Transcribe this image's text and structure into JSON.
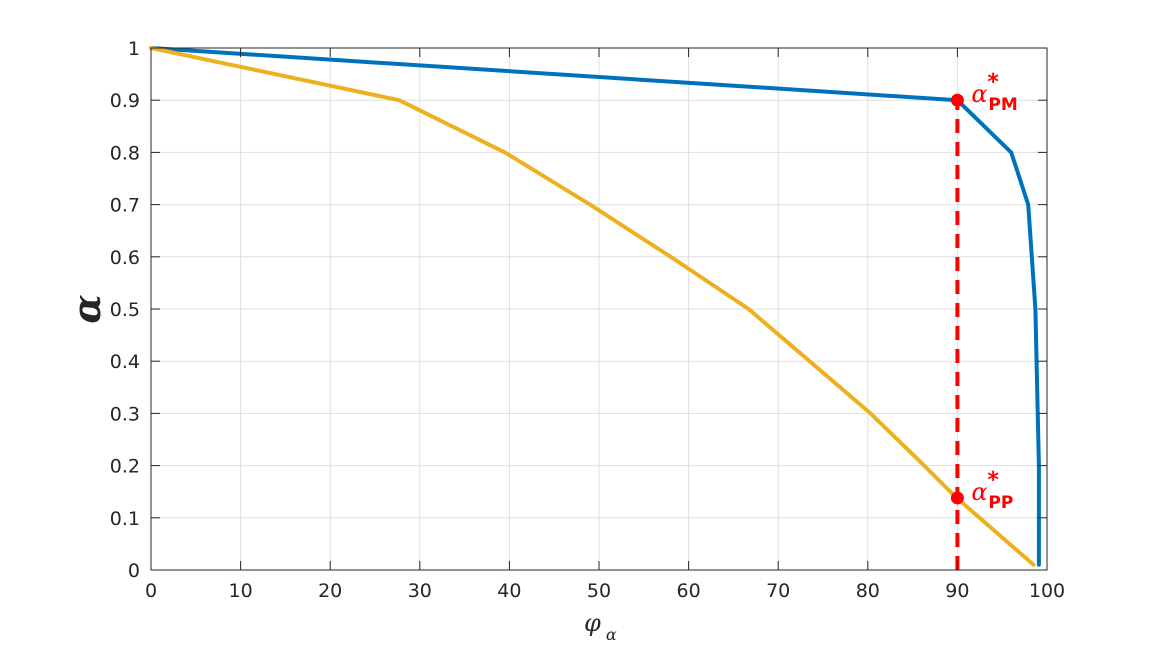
{
  "chart_data": {
    "type": "line",
    "title": "",
    "xlabel": {
      "base": "φ",
      "sub": "α"
    },
    "ylabel": "α",
    "xlim": [
      0,
      100
    ],
    "ylim": [
      0,
      1
    ],
    "grid": true,
    "box": true,
    "xticks": [
      0,
      10,
      20,
      30,
      40,
      50,
      60,
      70,
      80,
      90,
      100
    ],
    "yticks": [
      0,
      0.1,
      0.2,
      0.3,
      0.4,
      0.5,
      0.6,
      0.7,
      0.8,
      0.9,
      1
    ],
    "xtick_labels": [
      "0",
      "10",
      "20",
      "30",
      "40",
      "50",
      "60",
      "70",
      "80",
      "90",
      "100"
    ],
    "ytick_labels": [
      "0",
      "0.1",
      "0.2",
      "0.3",
      "0.4",
      "0.5",
      "0.6",
      "0.7",
      "0.8",
      "0.9",
      "1"
    ],
    "series": [
      {
        "color": "#0072BD",
        "points": [
          [
            0,
            1.0
          ],
          [
            90,
            0.9
          ],
          [
            96,
            0.8
          ],
          [
            97.9,
            0.7
          ],
          [
            98.7,
            0.5
          ],
          [
            99.1,
            0.2
          ],
          [
            99.1,
            0.01
          ]
        ]
      },
      {
        "color": "#EDB120",
        "points": [
          [
            0,
            1.0
          ],
          [
            27.7,
            0.9
          ],
          [
            39.5,
            0.8
          ],
          [
            49,
            0.7
          ],
          [
            58,
            0.6
          ],
          [
            66.7,
            0.5
          ],
          [
            73.5,
            0.4
          ],
          [
            80.3,
            0.3
          ],
          [
            86.3,
            0.2
          ],
          [
            89.8,
            0.14
          ],
          [
            98.5,
            0.01
          ]
        ]
      }
    ],
    "vline": {
      "x": 90,
      "y_from": 0,
      "y_to": 0.9,
      "color": "#ff0000",
      "style": "dashed"
    },
    "markers": [
      {
        "x": 90,
        "y": 0.9,
        "color": "#ff0000"
      },
      {
        "x": 90,
        "y": 0.138,
        "color": "#ff0000"
      }
    ],
    "annotations": [
      {
        "x": 90,
        "y": 0.9,
        "base": "α",
        "sup": "*",
        "sub": "PM",
        "color": "#ff0000"
      },
      {
        "x": 90,
        "y": 0.138,
        "base": "α",
        "sup": "*",
        "sub": "PP",
        "color": "#ff0000"
      }
    ]
  }
}
